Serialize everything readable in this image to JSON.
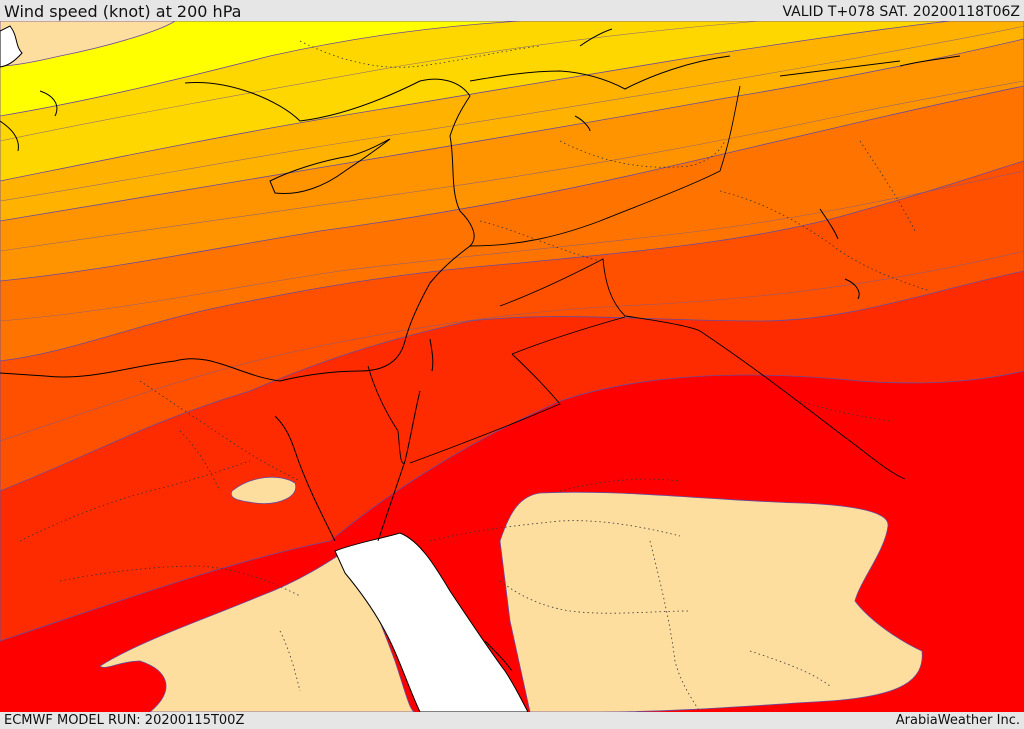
{
  "header": {
    "title": "Wind speed (knot) at 200 hPa",
    "valid_time": "VALID T+078 SAT. 20200118T06Z"
  },
  "footer": {
    "model_run": "ECMWF MODEL RUN: 20200115T00Z",
    "credit": "ArabiaWeather Inc."
  },
  "map": {
    "field": "wind speed 200 hPa",
    "colors": {
      "low": "#fdde9e",
      "band1": "#ffff00",
      "band2": "#ffd700",
      "band3": "#ffb300",
      "band4": "#ff9400",
      "band5": "#ff7400",
      "band6": "#ff5000",
      "band7": "#ff2b00",
      "band8": "#ff0000",
      "sea": "#ffffff"
    }
  }
}
